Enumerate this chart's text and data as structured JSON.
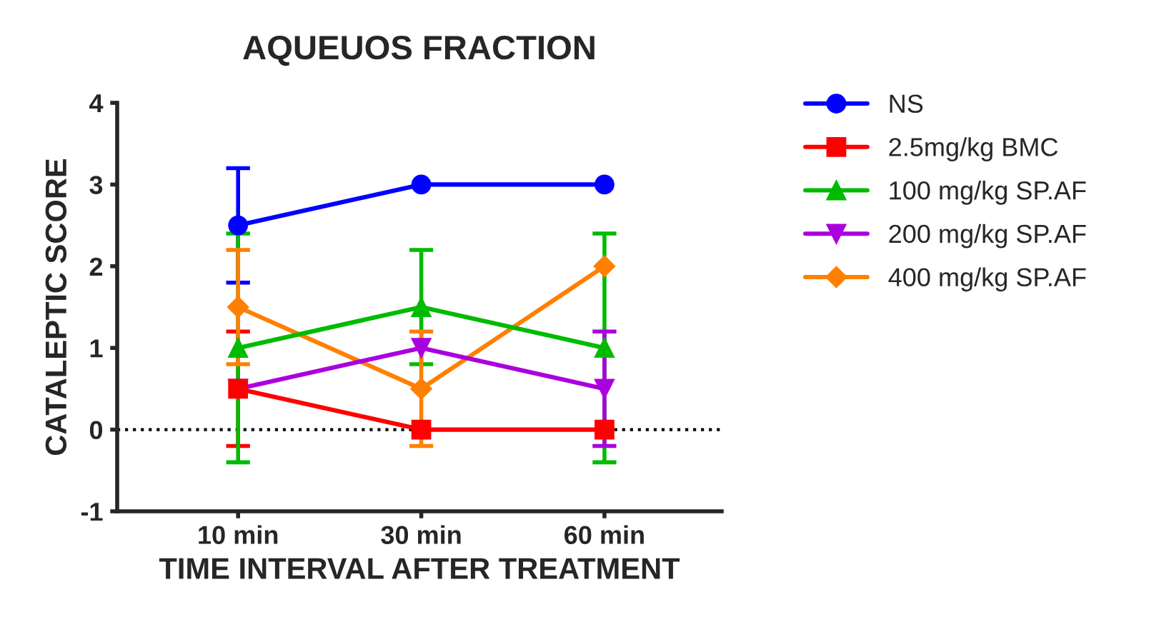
{
  "chart_data": {
    "type": "line",
    "title": "AQUEUOS FRACTION",
    "xlabel": "TIME INTERVAL AFTER TREATMENT",
    "ylabel": "CATALEPTIC SCORE",
    "categories": [
      "10 min",
      "30 min",
      "60 min"
    ],
    "series": [
      {
        "name": "NS",
        "color": "#0000ff",
        "marker": "circle",
        "values": [
          2.5,
          3,
          3
        ],
        "errors": [
          0.7,
          null,
          null
        ]
      },
      {
        "name": "2.5mg/kg BMC",
        "color": "#ff0000",
        "marker": "square",
        "values": [
          0.5,
          0,
          0
        ],
        "errors": [
          0.7,
          null,
          null
        ]
      },
      {
        "name": "100 mg/kg SP.AF",
        "color": "#00bb00",
        "marker": "triangle",
        "values": [
          1,
          1.5,
          1
        ],
        "errors": [
          1.4,
          0.7,
          1.4
        ]
      },
      {
        "name": "200 mg/kg SP.AF",
        "color": "#aa00dd",
        "marker": "triangle_down",
        "values": [
          0.5,
          1,
          0.5
        ],
        "errors": [
          null,
          null,
          0.7
        ]
      },
      {
        "name": "400 mg/kg SP.AF",
        "color": "#ff8000",
        "marker": "diamond",
        "values": [
          1.5,
          0.5,
          2
        ],
        "errors": [
          0.7,
          0.7,
          null
        ]
      }
    ],
    "ylim": [
      -1,
      4
    ],
    "yticks": [
      -1,
      0,
      1,
      2,
      3,
      4
    ],
    "grid": false,
    "legend": "right",
    "line_style": "solid",
    "ref_lines": [
      {
        "axis": "y",
        "value": 0,
        "color": "#000000",
        "line_style": "dotted"
      }
    ]
  }
}
